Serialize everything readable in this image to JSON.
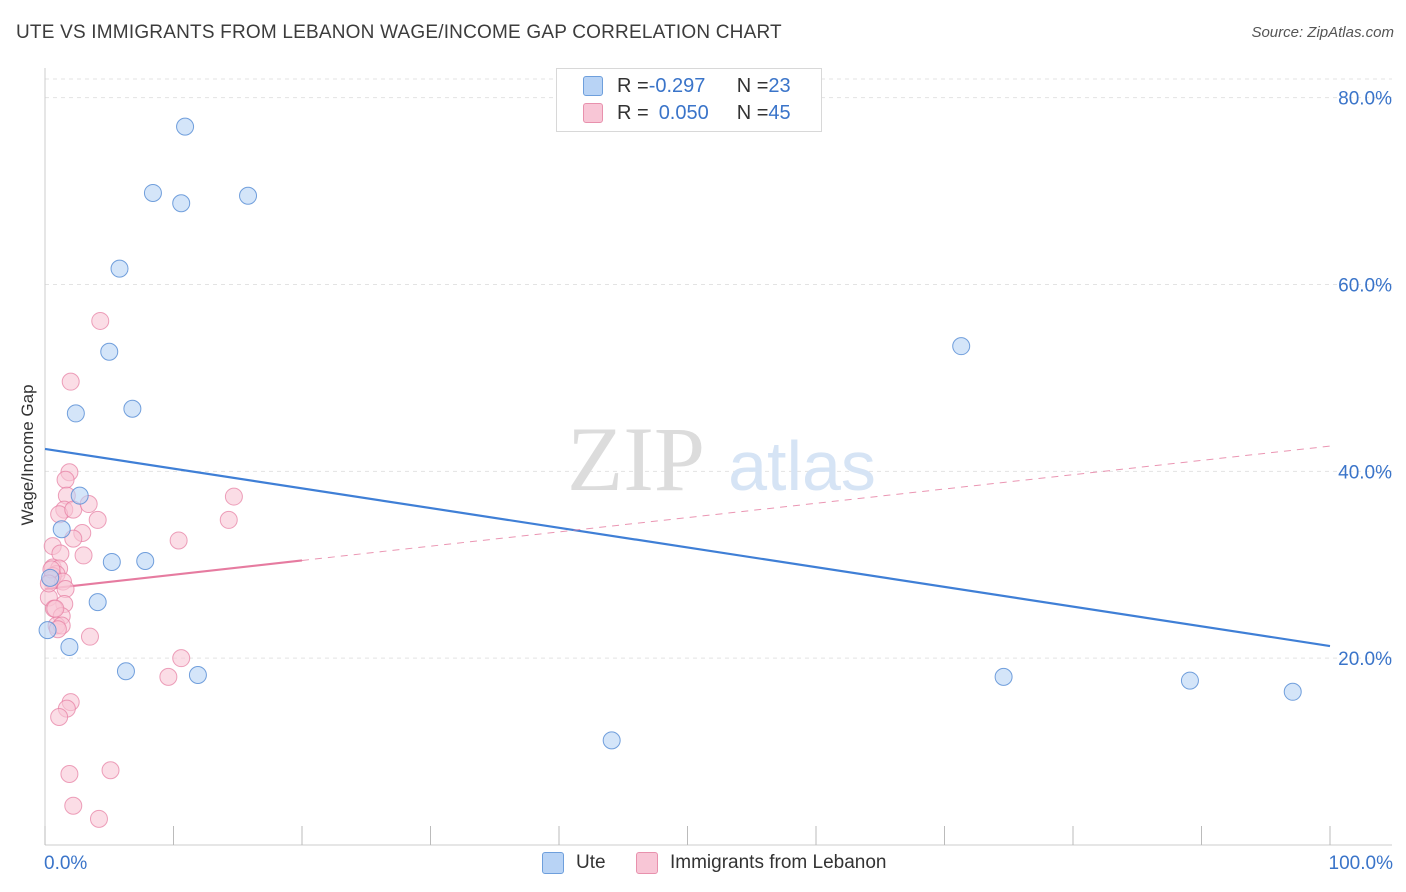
{
  "title": "UTE VS IMMIGRANTS FROM LEBANON WAGE/INCOME GAP CORRELATION CHART",
  "source": "Source: ZipAtlas.com",
  "watermark": {
    "zip": "ZIP",
    "atlas": "atlas"
  },
  "legend": {
    "ute": {
      "r_label": "R = ",
      "r_value": "-0.297",
      "n_label": "N = ",
      "n_value": "23"
    },
    "lebanon": {
      "r_label": "R = ",
      "r_value": "0.050",
      "n_label": "N = ",
      "n_value": "45"
    }
  },
  "bottom_legend": {
    "ute": "Ute",
    "lebanon": "Immigrants from Lebanon"
  },
  "chart_data": {
    "type": "scatter",
    "title": "UTE VS IMMIGRANTS FROM LEBANON WAGE/INCOME GAP CORRELATION CHART",
    "xlabel": "",
    "ylabel": "Wage/Income Gap",
    "xlim": [
      0,
      100
    ],
    "ylim": [
      0,
      85
    ],
    "x_tick_labels": [
      "0.0%",
      "100.0%"
    ],
    "y_ticks": [
      20,
      40,
      60,
      80
    ],
    "y_tick_labels": [
      "20.0%",
      "40.0%",
      "60.0%",
      "80.0%"
    ],
    "colors": {
      "ute": "#5a8fd6",
      "ute_fill": "#b8d3f5",
      "lebanon": "#e67ba0",
      "lebanon_fill": "#f8c6d6",
      "axis_text": "#3a74c9"
    },
    "series": [
      {
        "name": "Ute",
        "points": [
          [
            10.9,
            76.9
          ],
          [
            8.4,
            69.8
          ],
          [
            10.6,
            68.7
          ],
          [
            15.8,
            69.5
          ],
          [
            5.8,
            61.7
          ],
          [
            5.0,
            52.8
          ],
          [
            2.4,
            46.2
          ],
          [
            6.8,
            46.7
          ],
          [
            2.7,
            37.4
          ],
          [
            1.3,
            33.8
          ],
          [
            5.2,
            30.3
          ],
          [
            7.8,
            30.4
          ],
          [
            0.4,
            28.6
          ],
          [
            0.2,
            23.0
          ],
          [
            4.1,
            26.0
          ],
          [
            1.9,
            21.2
          ],
          [
            6.3,
            18.6
          ],
          [
            11.9,
            18.2
          ],
          [
            74.6,
            18.0
          ],
          [
            89.1,
            17.6
          ],
          [
            97.1,
            16.4
          ],
          [
            71.3,
            53.4
          ],
          [
            44.1,
            11.2
          ]
        ],
        "trend": {
          "x": [
            0,
            100
          ],
          "y": [
            42.4,
            21.3
          ],
          "style": "solid"
        }
      },
      {
        "name": "Immigrants from Lebanon",
        "points": [
          [
            4.3,
            56.1
          ],
          [
            2.0,
            49.6
          ],
          [
            1.9,
            39.9
          ],
          [
            1.6,
            39.1
          ],
          [
            1.7,
            37.4
          ],
          [
            14.7,
            37.3
          ],
          [
            1.5,
            35.9
          ],
          [
            1.1,
            35.4
          ],
          [
            2.2,
            35.9
          ],
          [
            3.4,
            36.5
          ],
          [
            4.1,
            34.8
          ],
          [
            14.3,
            34.8
          ],
          [
            2.9,
            33.4
          ],
          [
            2.2,
            32.8
          ],
          [
            10.4,
            32.6
          ],
          [
            0.6,
            32.0
          ],
          [
            1.2,
            31.2
          ],
          [
            3.0,
            31.0
          ],
          [
            0.6,
            29.7
          ],
          [
            1.1,
            29.6
          ],
          [
            0.9,
            29.0
          ],
          [
            0.6,
            28.8
          ],
          [
            0.5,
            28.4
          ],
          [
            1.4,
            28.2
          ],
          [
            1.6,
            27.4
          ],
          [
            0.3,
            26.5
          ],
          [
            1.5,
            25.8
          ],
          [
            0.7,
            25.3
          ],
          [
            1.3,
            24.5
          ],
          [
            0.9,
            23.5
          ],
          [
            1.3,
            23.5
          ],
          [
            1.0,
            23.1
          ],
          [
            3.5,
            22.3
          ],
          [
            10.6,
            20.0
          ],
          [
            9.6,
            18.0
          ],
          [
            2.0,
            15.3
          ],
          [
            1.7,
            14.6
          ],
          [
            1.1,
            13.7
          ],
          [
            1.9,
            7.6
          ],
          [
            5.1,
            8.0
          ],
          [
            2.2,
            4.2
          ],
          [
            4.2,
            2.8
          ],
          [
            0.8,
            25.3
          ],
          [
            0.5,
            29.5
          ],
          [
            0.3,
            28.0
          ]
        ],
        "trend": {
          "x": [
            0,
            100
          ],
          "y": [
            27.4,
            42.7
          ],
          "solid_until": 20,
          "style": "solid-then-dashed"
        }
      }
    ]
  }
}
